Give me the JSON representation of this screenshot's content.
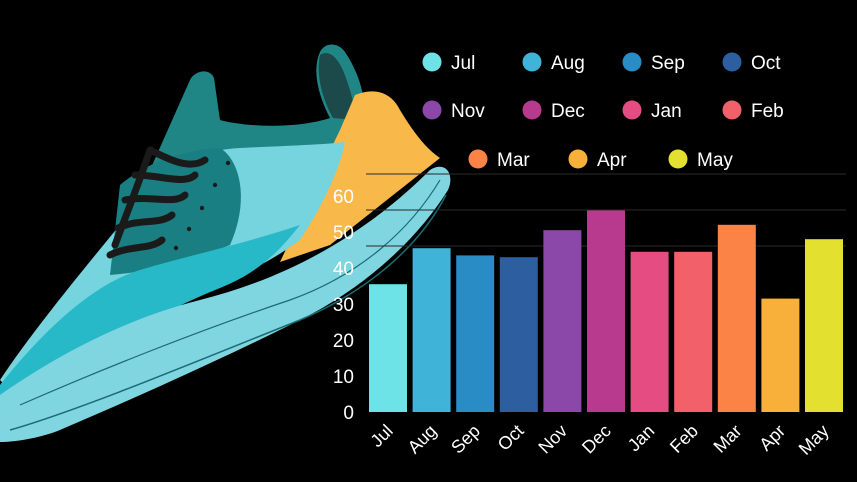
{
  "chart_data": {
    "type": "bar",
    "categories": [
      "Jul",
      "Aug",
      "Sep",
      "Oct",
      "Nov",
      "Dec",
      "Jan",
      "Feb",
      "Mar",
      "Apr",
      "May"
    ],
    "values": [
      35.5,
      45.5,
      43.5,
      43,
      50.5,
      56,
      44.5,
      44.5,
      52,
      31.5,
      48
    ],
    "colors": [
      "#6de3e8",
      "#3fb4d8",
      "#2a8cc4",
      "#2d5fa0",
      "#8c48a8",
      "#b83a8e",
      "#e54c82",
      "#f2616a",
      "#fa8345",
      "#f8b03a",
      "#e4e030"
    ],
    "yticks": [
      0,
      10,
      20,
      30,
      40,
      50,
      60
    ],
    "ylim": [
      0,
      70
    ],
    "grid": true,
    "legend": {
      "placement": "top",
      "entries": [
        "Jul",
        "Aug",
        "Sep",
        "Oct",
        "Nov",
        "Dec",
        "Jan",
        "Feb",
        "Mar",
        "Apr",
        "May"
      ]
    },
    "title": "",
    "xlabel": "",
    "ylabel": ""
  },
  "decoration": {
    "illustration": "sneaker-illustration"
  }
}
